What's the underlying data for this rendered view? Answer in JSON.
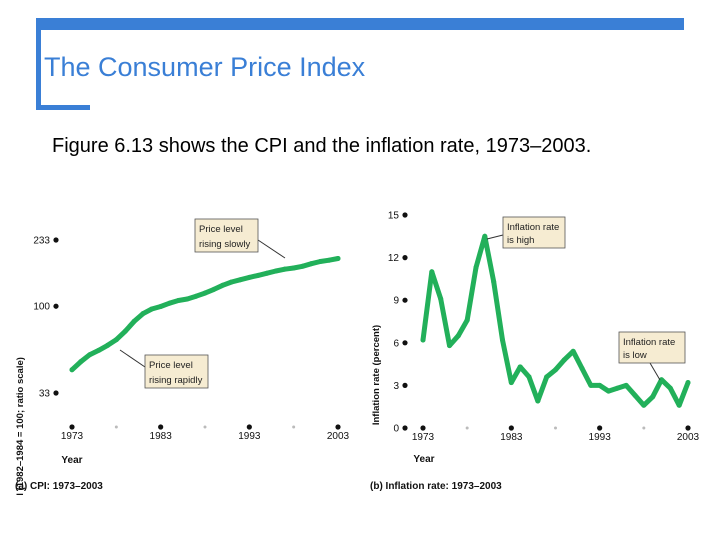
{
  "slide": {
    "title": "The Consumer Price Index",
    "text": "Figure 6.13 shows the CPI and the inflation rate, 1973–2003."
  },
  "colors": {
    "accent": "#3a7fd6",
    "line": "#22b05a",
    "callout_bg": "#f6ecd2"
  },
  "chart_data": [
    {
      "type": "line",
      "title": "(a) CPI: 1973–2003",
      "xlabel": "Year",
      "ylabel": "CPI (1982–1984 = 100; ratio scale)",
      "scale": "log",
      "ylim": [
        33,
        233
      ],
      "yticks": [
        33,
        100,
        233
      ],
      "xticks": [
        1973,
        1983,
        1993,
        2003
      ],
      "x": [
        1973,
        1974,
        1975,
        1976,
        1977,
        1978,
        1979,
        1980,
        1981,
        1982,
        1983,
        1984,
        1985,
        1986,
        1987,
        1988,
        1989,
        1990,
        1991,
        1992,
        1993,
        1994,
        1995,
        1996,
        1997,
        1998,
        1999,
        2000,
        2001,
        2002,
        2003
      ],
      "y": [
        44.4,
        49.3,
        53.8,
        56.9,
        60.6,
        65.2,
        72.6,
        82.4,
        90.9,
        96.5,
        99.6,
        103.9,
        107.6,
        109.6,
        113.6,
        118.3,
        124.0,
        130.7,
        136.2,
        140.3,
        144.5,
        148.2,
        152.4,
        156.9,
        160.5,
        163.0,
        166.6,
        172.2,
        177.1,
        179.9,
        184.0
      ],
      "annotations": [
        {
          "text": [
            "Price level",
            "rising slowly"
          ]
        },
        {
          "text": [
            "Price level",
            "rising rapidly"
          ]
        }
      ]
    },
    {
      "type": "line",
      "title": "(b) Inflation rate: 1973–2003",
      "xlabel": "Year",
      "ylabel": "Inflation rate (percent)",
      "ylim": [
        0,
        15
      ],
      "yticks": [
        0,
        3,
        6,
        9,
        12,
        15
      ],
      "xticks": [
        1973,
        1983,
        1993,
        2003
      ],
      "x": [
        1973,
        1974,
        1975,
        1976,
        1977,
        1978,
        1979,
        1980,
        1981,
        1982,
        1983,
        1984,
        1985,
        1986,
        1987,
        1988,
        1989,
        1990,
        1991,
        1992,
        1993,
        1994,
        1995,
        1996,
        1997,
        1998,
        1999,
        2000,
        2001,
        2002,
        2003
      ],
      "y": [
        6.2,
        11.0,
        9.1,
        5.8,
        6.5,
        7.6,
        11.3,
        13.5,
        10.3,
        6.2,
        3.2,
        4.3,
        3.6,
        1.9,
        3.6,
        4.1,
        4.8,
        5.4,
        4.2,
        3.0,
        3.0,
        2.6,
        2.8,
        3.0,
        2.3,
        1.6,
        2.2,
        3.4,
        2.8,
        1.6,
        3.2
      ],
      "annotations": [
        {
          "text": [
            "Inflation rate",
            "is high"
          ]
        },
        {
          "text": [
            "Inflation rate",
            "is low"
          ]
        }
      ]
    }
  ]
}
